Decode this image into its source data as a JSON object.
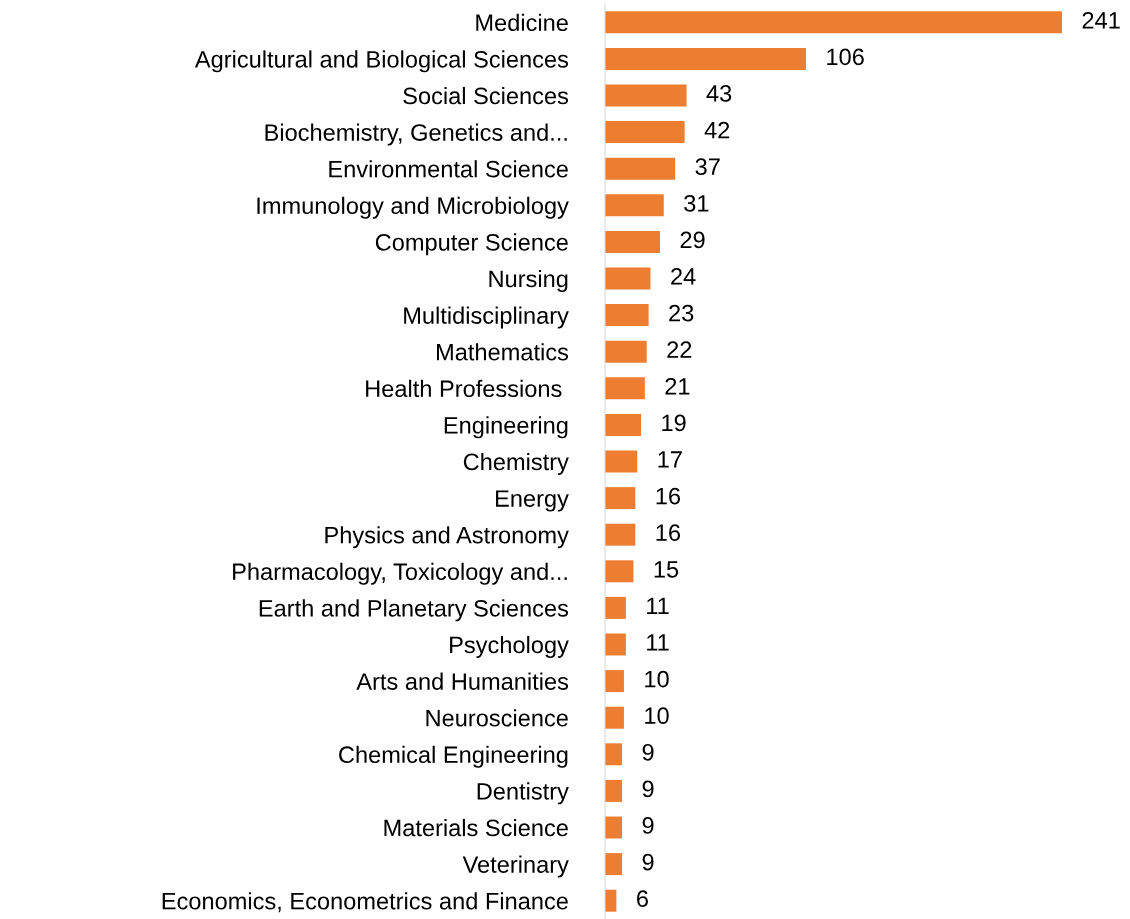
{
  "chart_data": {
    "type": "bar",
    "orientation": "horizontal",
    "data_labels": true,
    "grid": false,
    "legend": false,
    "color": "#ed7d31",
    "categories": [
      "Medicine",
      "Agricultural and Biological Sciences",
      "Social Sciences",
      "Biochemistry, Genetics and...",
      "Environmental Science",
      "Immunology and Microbiology",
      "Computer Science",
      "Nursing",
      "Multidisciplinary",
      "Mathematics",
      "Health Professions ",
      "Engineering",
      "Chemistry",
      "Energy",
      "Physics and Astronomy",
      "Pharmacology, Toxicology and...",
      "Earth and Planetary Sciences",
      "Psychology",
      "Arts and Humanities",
      "Neuroscience",
      "Chemical Engineering",
      "Dentistry",
      "Materials Science",
      "Veterinary",
      "Economics, Econometrics and Finance"
    ],
    "values": [
      241,
      106,
      43,
      42,
      37,
      31,
      29,
      24,
      23,
      22,
      21,
      19,
      17,
      16,
      16,
      15,
      11,
      11,
      10,
      10,
      9,
      9,
      9,
      9,
      6
    ]
  }
}
